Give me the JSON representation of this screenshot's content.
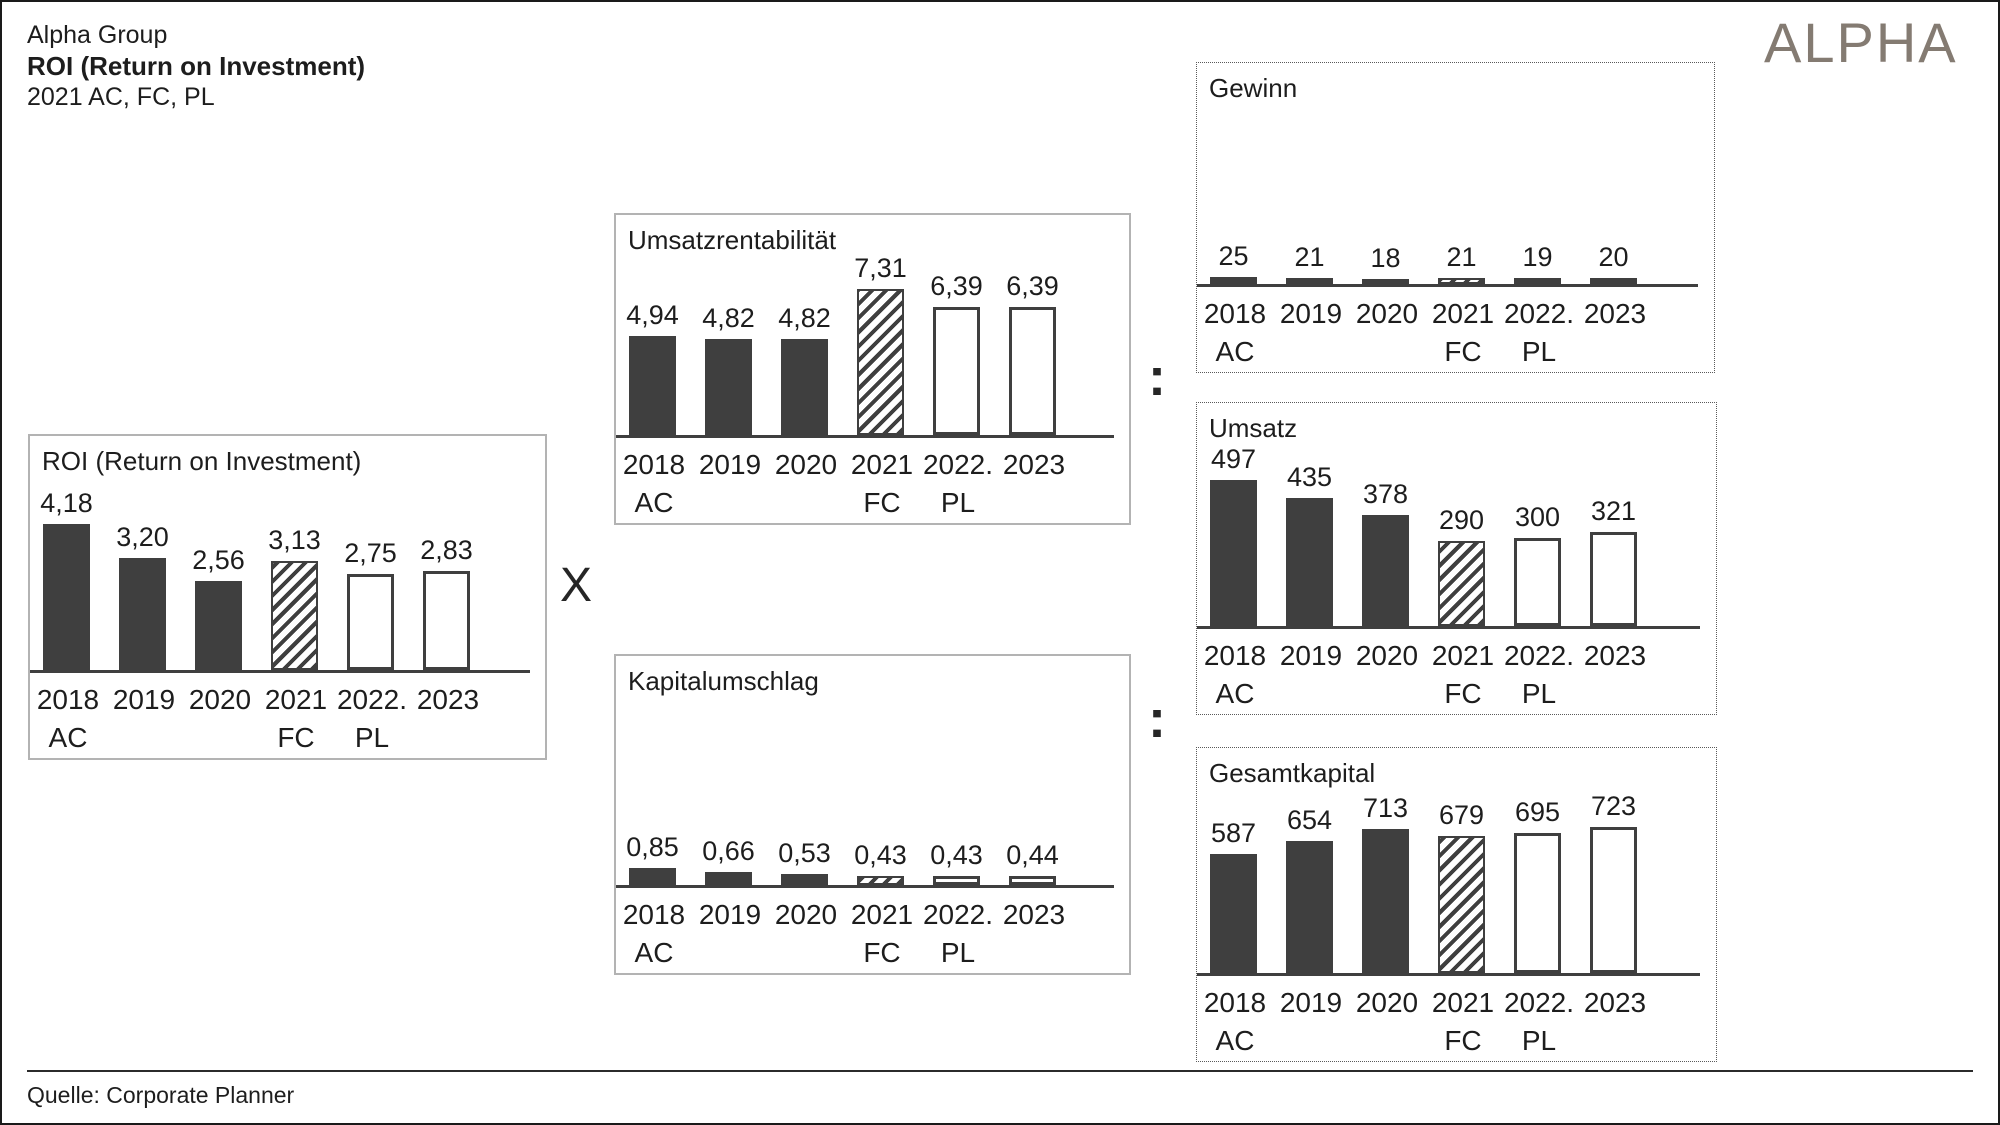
{
  "header": {
    "company": "Alpha Group",
    "title": "ROI (Return on Investment)",
    "subtitle": "2021 AC, FC, PL"
  },
  "logo": {
    "text": "ALPHA",
    "color": "#847b72"
  },
  "operators": {
    "multiply": "X",
    "divide": ":"
  },
  "years": [
    "2018",
    "2019",
    "2020",
    "2021",
    "2022.",
    "2023"
  ],
  "scenario_row": [
    "AC",
    "",
    "",
    "FC",
    "PL",
    ""
  ],
  "bar_styles": [
    "solid",
    "solid",
    "solid",
    "hatch",
    "outline",
    "outline"
  ],
  "colors": {
    "bar_dark": "#3f3f3f",
    "text": "#1d1d1d",
    "logo": "#847b72",
    "box_border_solid": "#b3b3b3",
    "box_border_dotted": "#5a5a5a"
  },
  "footer": {
    "source": "Quelle: Corporate Planner"
  },
  "chart_data": [
    {
      "type": "bar",
      "title": "ROI (Return on Investment)",
      "categories": [
        "2018",
        "2019",
        "2020",
        "2021",
        "2022.",
        "2023"
      ],
      "values": [
        4.18,
        3.2,
        2.56,
        3.13,
        2.75,
        2.83
      ],
      "value_labels": [
        "4,18",
        "3,20",
        "2,56",
        "3,13",
        "2,75",
        "2,83"
      ],
      "scale_max": 4.18,
      "scenarios": {
        "AC": "2018-2020",
        "FC": "2021",
        "PL": "2022-2023"
      }
    },
    {
      "type": "bar",
      "title": "Umsatzrentabilität",
      "categories": [
        "2018",
        "2019",
        "2020",
        "2021",
        "2022.",
        "2023"
      ],
      "values": [
        4.94,
        4.82,
        4.82,
        7.31,
        6.39,
        6.39
      ],
      "value_labels": [
        "4,94",
        "4,82",
        "4,82",
        "7,31",
        "6,39",
        "6,39"
      ],
      "scale_max": 7.31,
      "scenarios": {
        "AC": "2018-2020",
        "FC": "2021",
        "PL": "2022-2023"
      }
    },
    {
      "type": "bar",
      "title": "Kapitalumschlag",
      "categories": [
        "2018",
        "2019",
        "2020",
        "2021",
        "2022.",
        "2023"
      ],
      "values": [
        0.85,
        0.66,
        0.53,
        0.43,
        0.43,
        0.44
      ],
      "value_labels": [
        "0,85",
        "0,66",
        "0,53",
        "0,43",
        "0,43",
        "0,44"
      ],
      "scale_max": 7.31,
      "scenarios": {
        "AC": "2018-2020",
        "FC": "2021",
        "PL": "2022-2023"
      }
    },
    {
      "type": "bar",
      "title": "Gewinn",
      "categories": [
        "2018",
        "2019",
        "2020",
        "2021",
        "2022.",
        "2023"
      ],
      "values": [
        25,
        21,
        18,
        21,
        19,
        20
      ],
      "value_labels": [
        "25",
        "21",
        "18",
        "21",
        "19",
        "20"
      ],
      "scale_max": 497,
      "scenarios": {
        "AC": "2018-2020",
        "FC": "2021",
        "PL": "2022-2023"
      }
    },
    {
      "type": "bar",
      "title": "Umsatz",
      "categories": [
        "2018",
        "2019",
        "2020",
        "2021",
        "2022.",
        "2023"
      ],
      "values": [
        497,
        435,
        378,
        290,
        300,
        321
      ],
      "value_labels": [
        "497",
        "435",
        "378",
        "290",
        "300",
        "321"
      ],
      "scale_max": 497,
      "scenarios": {
        "AC": "2018-2020",
        "FC": "2021",
        "PL": "2022-2023"
      }
    },
    {
      "type": "bar",
      "title": "Gesamtkapital",
      "categories": [
        "2018",
        "2019",
        "2020",
        "2021",
        "2022.",
        "2023"
      ],
      "values": [
        587,
        654,
        713,
        679,
        695,
        723
      ],
      "value_labels": [
        "587",
        "654",
        "713",
        "679",
        "695",
        "723"
      ],
      "scale_max": 723,
      "scenarios": {
        "AC": "2018-2020",
        "FC": "2021",
        "PL": "2022-2023"
      }
    }
  ]
}
